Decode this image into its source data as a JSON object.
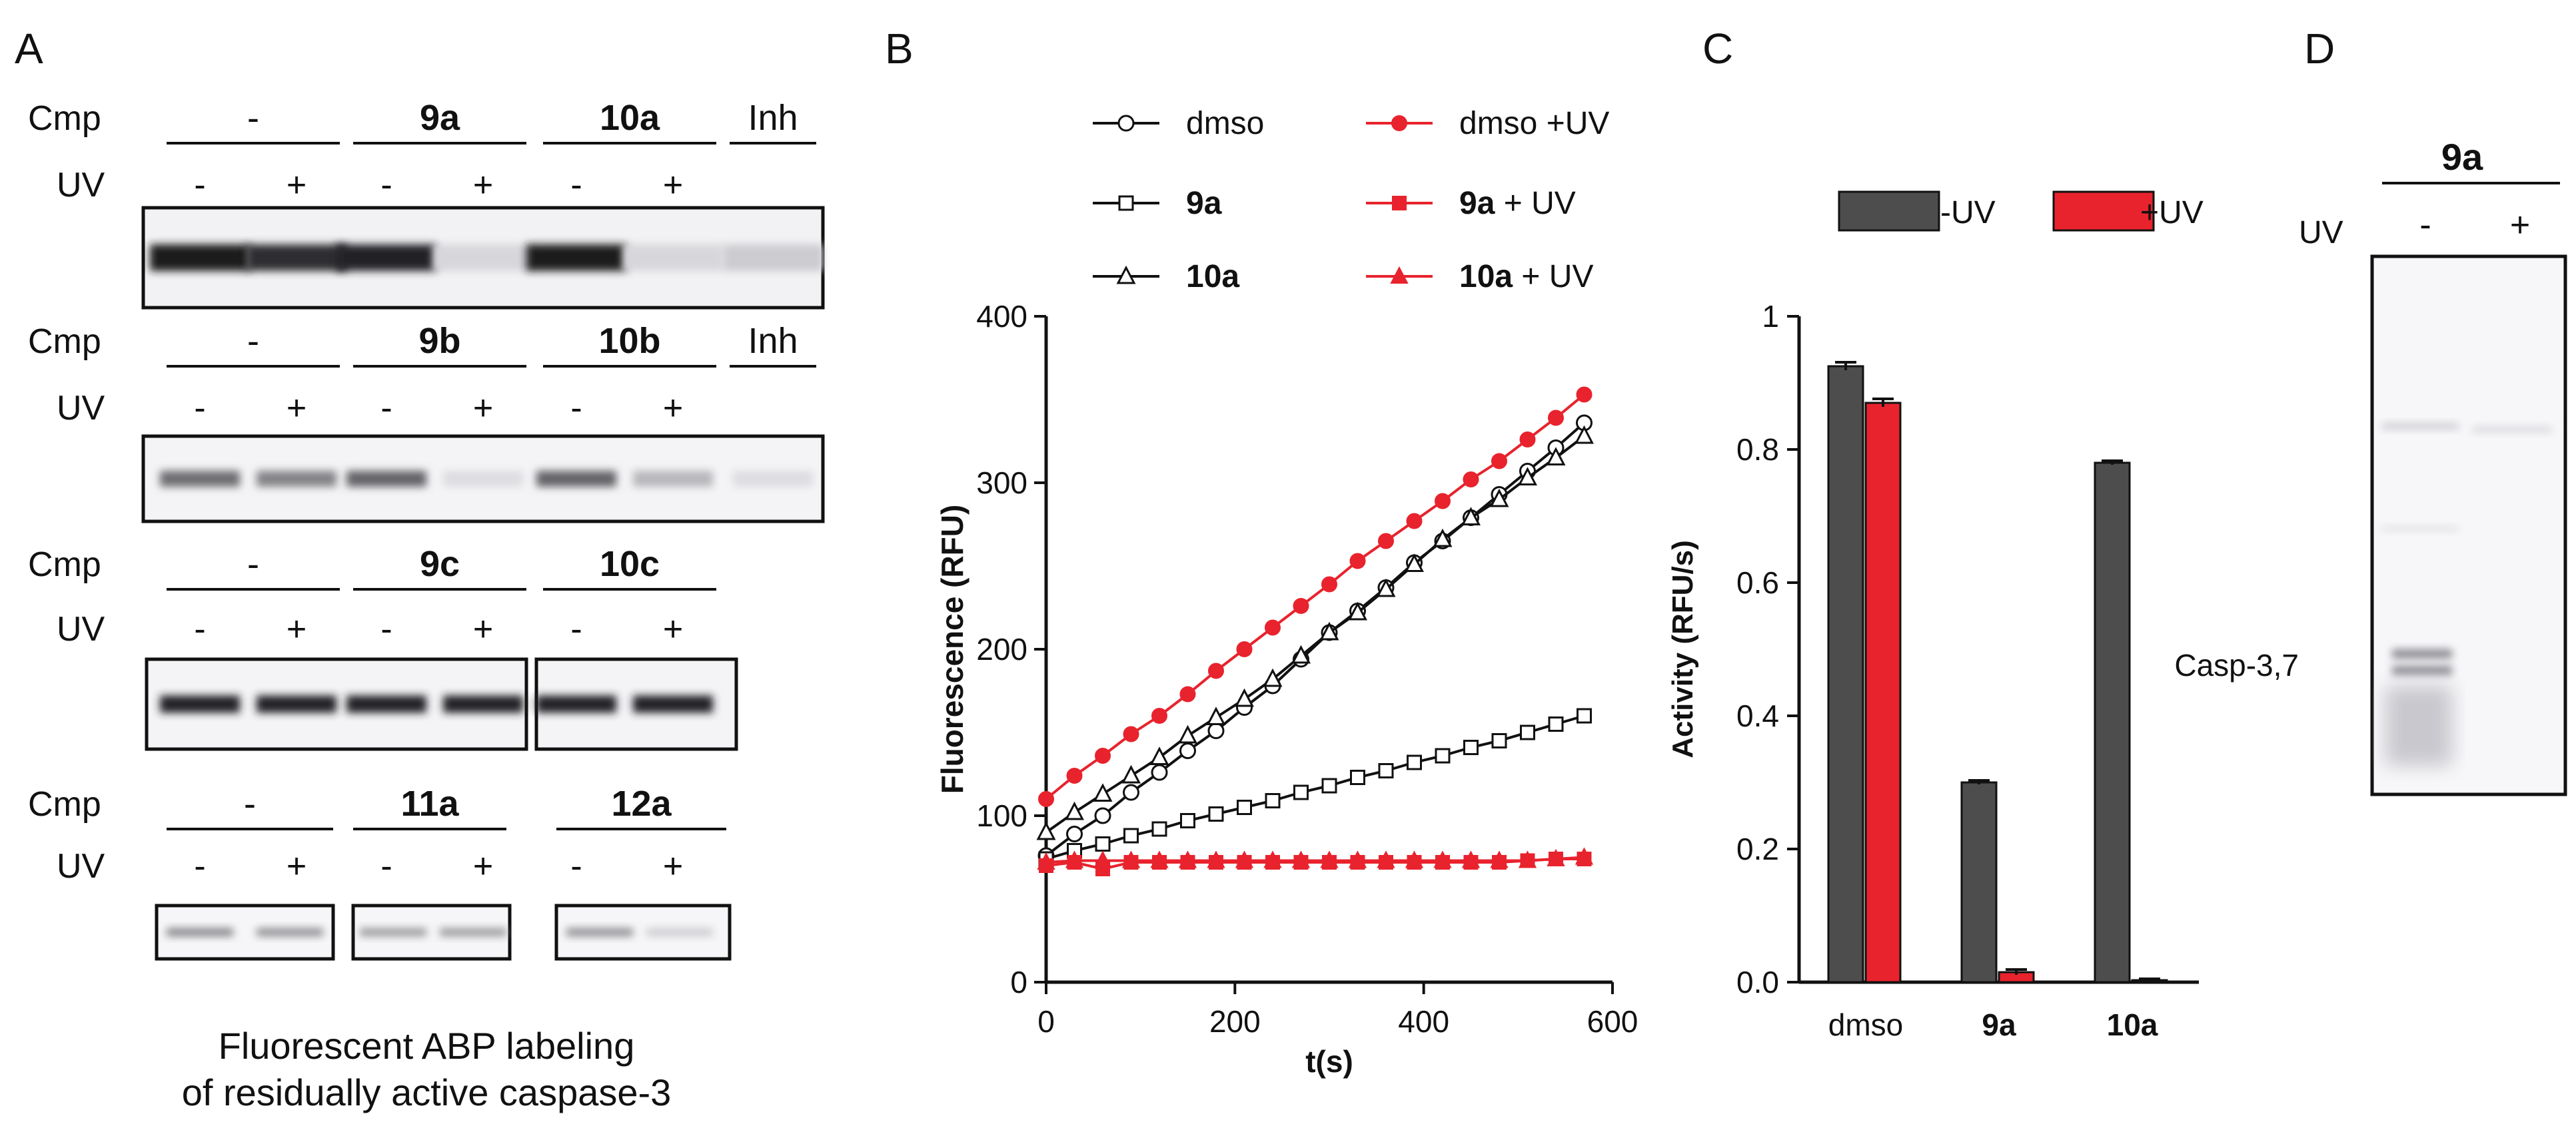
{
  "panel_labels": {
    "a": "A",
    "b": "B",
    "c": "C",
    "d": "D"
  },
  "panel_a": {
    "row_label_cmp": "Cmp",
    "row_label_uv": "UV",
    "uv_minus": "-",
    "uv_plus": "+",
    "gel1": {
      "groups": [
        "-",
        "9a",
        "10a",
        "Inh"
      ],
      "bold": [
        false,
        true,
        true,
        false
      ],
      "band_intensity": [
        0.95,
        0.85,
        0.9,
        0.05,
        0.95,
        0.05,
        0.1
      ]
    },
    "gel2": {
      "groups": [
        "-",
        "9b",
        "10b",
        "Inh"
      ],
      "bold": [
        false,
        true,
        true,
        false
      ],
      "band_intensity": [
        0.55,
        0.45,
        0.6,
        0.02,
        0.6,
        0.2,
        0.02
      ]
    },
    "gel3": {
      "groups": [
        "-",
        "9c",
        "10c"
      ],
      "bold": [
        false,
        true,
        true
      ],
      "band_intensity": [
        0.9,
        0.9,
        0.9,
        0.9,
        0.9,
        0.9
      ]
    },
    "gel4": {
      "groups": [
        "-",
        "11a",
        "12a"
      ],
      "bold": [
        false,
        true,
        true
      ],
      "band_intensity": [
        0.45,
        0.4,
        0.35,
        0.35,
        0.4,
        0.1
      ]
    },
    "caption_line1": "Fluorescent ABP labeling",
    "caption_line2": "of residually active caspase-3"
  },
  "panel_d": {
    "compound": "9a",
    "uv_label": "UV",
    "lane_minus": "-",
    "lane_plus": "+",
    "band_label": "Casp-3,7"
  },
  "chart_data": [
    {
      "type": "line",
      "id": "B",
      "title": "",
      "xlabel": "t(s)",
      "ylabel": "Fluorescence (RFU)",
      "xlim": [
        0,
        600
      ],
      "ylim": [
        0,
        400
      ],
      "xticks": [
        "0",
        "200",
        "400",
        "600"
      ],
      "yticks": [
        "0",
        "100",
        "200",
        "300",
        "400"
      ],
      "legend": {
        "placement": "top",
        "entries": [
          {
            "bold": "",
            "label": "dmso",
            "marker": "circle",
            "color": "#111111"
          },
          {
            "bold": "9a",
            "label": "",
            "marker": "square",
            "color": "#111111"
          },
          {
            "bold": "10a",
            "label": "",
            "marker": "triangle",
            "color": "#111111"
          },
          {
            "bold": "",
            "label": "dmso +UV",
            "marker": "circle-filled",
            "color": "#e8232d"
          },
          {
            "bold": "9a",
            "label": " + UV",
            "marker": "square-filled",
            "color": "#e8232d"
          },
          {
            "bold": "10a",
            "label": " + UV",
            "marker": "triangle-filled",
            "color": "#e8232d"
          }
        ]
      },
      "x_start": 0,
      "x_step": 30,
      "series": [
        {
          "name": "dmso",
          "color": "#111111",
          "marker": "circle",
          "filled": false,
          "values": [
            76,
            89,
            100,
            114,
            126,
            139,
            151,
            165,
            178,
            194,
            210,
            223,
            237,
            252,
            265,
            279,
            293,
            307,
            321,
            336
          ]
        },
        {
          "name": "9a",
          "color": "#111111",
          "marker": "square",
          "filled": false,
          "values": [
            74,
            79,
            83,
            88,
            92,
            97,
            101,
            105,
            109,
            114,
            118,
            123,
            127,
            132,
            136,
            141,
            145,
            150,
            155,
            160
          ]
        },
        {
          "name": "10a",
          "color": "#111111",
          "marker": "triangle",
          "filled": false,
          "values": [
            90,
            102,
            113,
            124,
            135,
            148,
            159,
            170,
            182,
            196,
            210,
            222,
            236,
            251,
            266,
            279,
            290,
            303,
            315,
            328
          ]
        },
        {
          "name": "dmso +UV",
          "color": "#e8232d",
          "marker": "circle",
          "filled": true,
          "values": [
            110,
            124,
            136,
            149,
            160,
            173,
            187,
            200,
            213,
            226,
            239,
            253,
            265,
            277,
            289,
            302,
            313,
            326,
            339,
            353
          ]
        },
        {
          "name": "9a + UV",
          "color": "#e8232d",
          "marker": "square",
          "filled": true,
          "values": [
            70,
            72,
            68,
            72,
            72,
            72,
            72,
            72,
            72,
            72,
            72,
            72,
            72,
            72,
            72,
            72,
            72,
            73,
            74,
            74
          ]
        },
        {
          "name": "10a + UV",
          "color": "#e8232d",
          "marker": "triangle",
          "filled": true,
          "values": [
            72,
            73,
            73,
            73,
            73,
            73,
            73,
            73,
            73,
            73,
            73,
            73,
            73,
            73,
            73,
            73,
            73,
            73,
            74,
            75
          ]
        }
      ]
    },
    {
      "type": "bar",
      "id": "C",
      "title": "",
      "xlabel": "",
      "ylabel": "Activity (RFU/s)",
      "ylim": [
        0,
        1
      ],
      "yticks": [
        "0.0",
        "0.2",
        "0.4",
        "0.6",
        "0.8",
        "1"
      ],
      "categories": [
        "dmso",
        "9a",
        "10a"
      ],
      "category_bold": [
        false,
        true,
        true
      ],
      "legend": {
        "placement": "top",
        "entries": [
          "-UV",
          "+UV"
        ]
      },
      "series": [
        {
          "name": "-UV",
          "color": "#4d4d4d",
          "values": [
            0.925,
            0.3,
            0.78
          ],
          "errors": [
            0.006,
            0.003,
            0.003
          ]
        },
        {
          "name": "+UV",
          "color": "#e8232d",
          "values": [
            0.87,
            0.015,
            0.003
          ],
          "errors": [
            0.006,
            0.004,
            0.002
          ]
        }
      ]
    }
  ]
}
